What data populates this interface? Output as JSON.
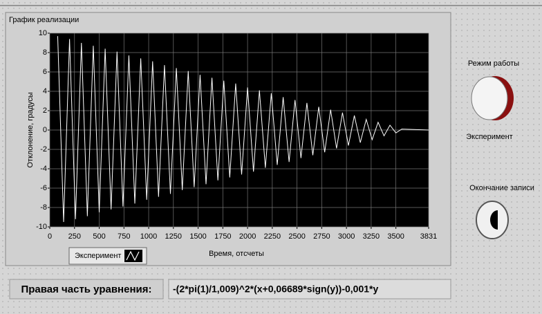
{
  "chart_data": {
    "type": "line",
    "title": "График реализации",
    "x_label": "Время, отсчеты",
    "y_label": "Отклонение, градусы",
    "x": [
      80,
      140,
      200,
      260,
      320,
      380,
      440,
      500,
      560,
      620,
      680,
      740,
      800,
      860,
      920,
      980,
      1040,
      1100,
      1160,
      1220,
      1280,
      1340,
      1400,
      1460,
      1520,
      1580,
      1640,
      1700,
      1760,
      1820,
      1880,
      1940,
      2000,
      2060,
      2120,
      2180,
      2240,
      2300,
      2360,
      2420,
      2480,
      2540,
      2600,
      2660,
      2720,
      2780,
      2840,
      2900,
      2960,
      3020,
      3080,
      3140,
      3200,
      3260,
      3320,
      3380,
      3440,
      3500,
      3560,
      3831
    ],
    "series": [
      {
        "name": "Эксперимент",
        "color": "#ffffff",
        "values": [
          9.7,
          -9.5,
          9.4,
          -9.2,
          9.0,
          -8.9,
          8.7,
          -8.5,
          8.4,
          -8.2,
          8.1,
          -7.9,
          7.7,
          -7.6,
          7.4,
          -7.2,
          7.1,
          -6.9,
          6.7,
          -6.6,
          6.4,
          -6.2,
          6.1,
          -5.9,
          5.7,
          -5.6,
          5.4,
          -5.2,
          5.1,
          -4.9,
          4.8,
          -4.6,
          4.4,
          -4.3,
          4.1,
          -3.9,
          3.8,
          -3.6,
          3.4,
          -3.3,
          3.1,
          -2.9,
          2.8,
          -2.6,
          2.4,
          -2.3,
          2.1,
          -1.9,
          1.8,
          -1.6,
          1.5,
          -1.3,
          1.1,
          -1.0,
          0.8,
          -0.6,
          0.5,
          -0.3,
          0.1,
          0
        ]
      }
    ],
    "xlim": [
      0,
      3831
    ],
    "xticks": [
      0,
      250,
      500,
      750,
      1000,
      1250,
      1500,
      1750,
      2000,
      2250,
      2500,
      2750,
      3000,
      3250,
      3500,
      3831
    ],
    "ylim": [
      -10,
      10
    ],
    "yticks": [
      -10,
      -8,
      -6,
      -4,
      -2,
      0,
      2,
      4,
      6,
      8,
      10
    ],
    "grid": true
  },
  "panel": {
    "mode_label": "Режим работы",
    "mode_value": "Эксперимент",
    "stop_label": "Окончание записи",
    "equation_label": "Правая часть уравнения:",
    "equation": "-(2*pi(1)/1,009)^2*(x+0,06689*sign(y))-0,001*y"
  }
}
